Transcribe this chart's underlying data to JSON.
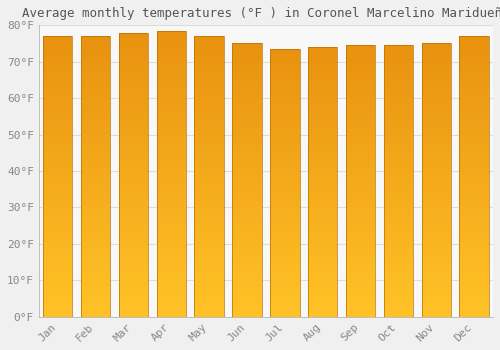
{
  "title": "Average monthly temperatures (°F ) in Coronel Marcelino Maridueña",
  "months": [
    "Jan",
    "Feb",
    "Mar",
    "Apr",
    "May",
    "Jun",
    "Jul",
    "Aug",
    "Sep",
    "Oct",
    "Nov",
    "Dec"
  ],
  "values": [
    77.0,
    77.0,
    78.0,
    78.5,
    77.0,
    75.0,
    73.5,
    74.0,
    74.5,
    74.5,
    75.0,
    77.0
  ],
  "bar_color_outer": "#E8920A",
  "bar_color_inner": "#FFC125",
  "background_color": "#F0F0F0",
  "plot_bg_color": "#F8F8F8",
  "ylim": [
    0,
    80
  ],
  "yticks": [
    0,
    10,
    20,
    30,
    40,
    50,
    60,
    70,
    80
  ],
  "title_fontsize": 9,
  "tick_fontsize": 8,
  "grid_color": "#DDDDDD"
}
